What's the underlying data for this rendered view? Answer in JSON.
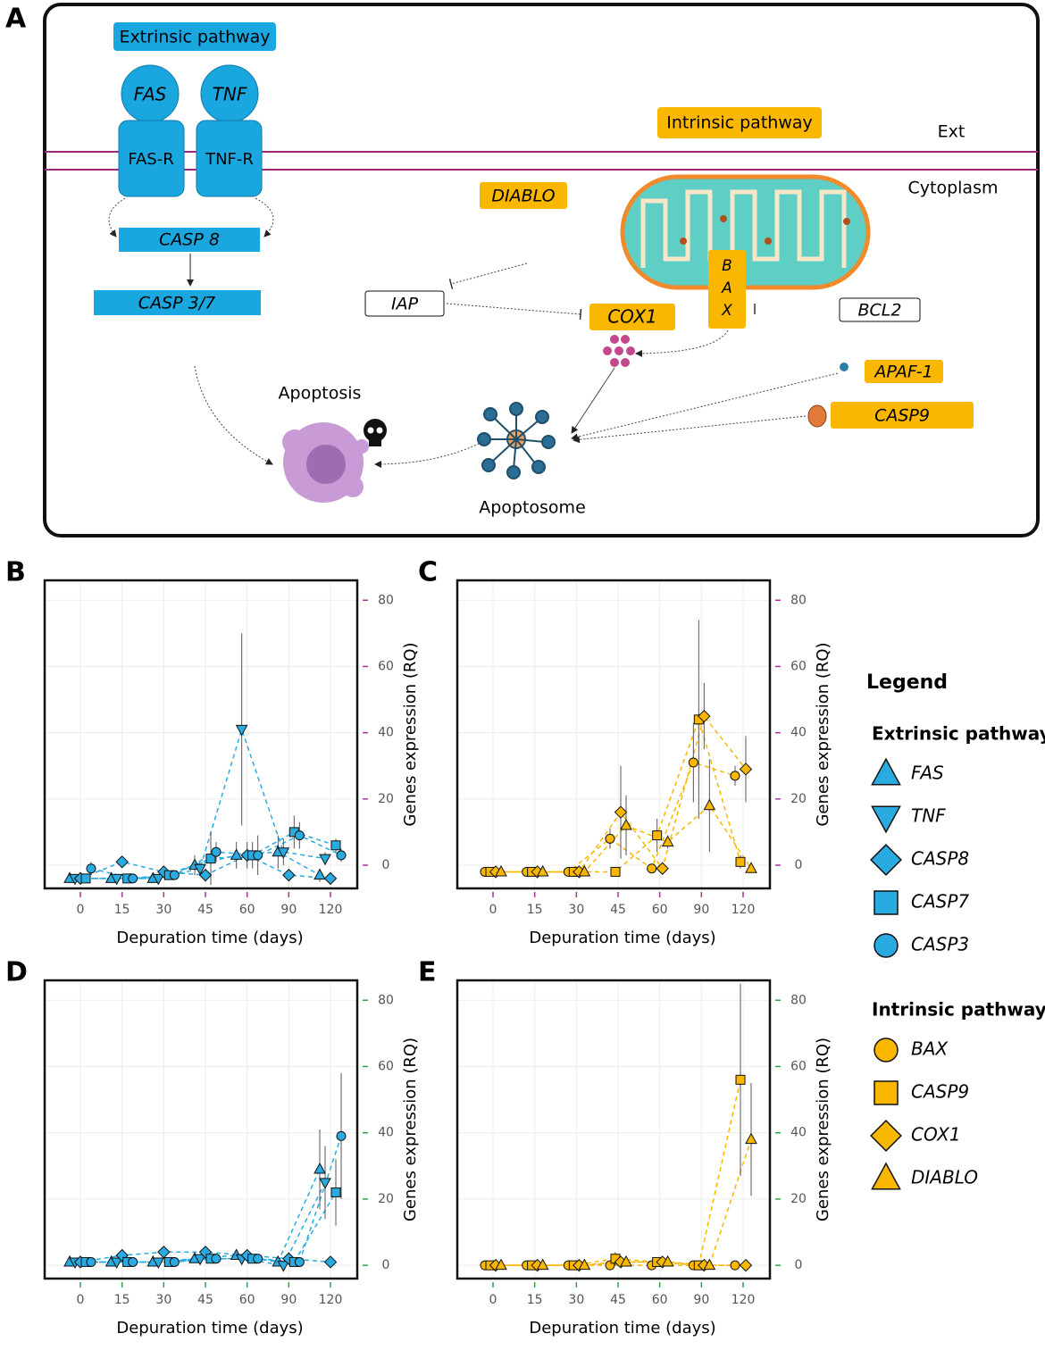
{
  "diagram": {
    "label": "A",
    "extrinsic_pathway": "Extrinsic pathway",
    "intrinsic_pathway": "Intrinsic pathway",
    "ext": "Ext",
    "cytoplasm": "Cytoplasm",
    "ligands": [
      "FAS",
      "TNF"
    ],
    "receptors": [
      "FAS-R",
      "TNF-R"
    ],
    "casp8": "CASP 8",
    "casp37": "CASP 3/7",
    "iap": "IAP",
    "diablo": "DIABLO",
    "bax": [
      "B",
      "A",
      "X"
    ],
    "cox1": "COX1",
    "bcl2": "BCL2",
    "apaf1": "APAF-1",
    "casp9": "CASP9",
    "apoptosis": "Apoptosis",
    "apoptosome": "Apoptosome"
  },
  "chart_data": [
    {
      "type": "line",
      "label": "B",
      "x_label": "Depuration time (days)",
      "y_label": "Genes expression (RQ)",
      "categories": [
        "0",
        "15",
        "30",
        "45",
        "60",
        "90",
        "120"
      ],
      "ylim": [
        -7,
        86
      ],
      "yticks": [
        0,
        20,
        40,
        60,
        80
      ],
      "tick_color": "#b0309a",
      "color": "#29abe2",
      "grid": true,
      "series": [
        {
          "name": "FAS",
          "marker": "triangle-up",
          "values": [
            -4,
            -4,
            -4,
            0,
            3,
            4,
            -3
          ],
          "errors": [
            1,
            1,
            1,
            3,
            4,
            5,
            2
          ]
        },
        {
          "name": "TNF",
          "marker": "triangle-down",
          "values": [
            -4,
            -4,
            -4,
            -1,
            41,
            4,
            2
          ],
          "errors": [
            1,
            1,
            1,
            2,
            29,
            4,
            2
          ]
        },
        {
          "name": "CASP8",
          "marker": "diamond",
          "values": [
            -4,
            1,
            -2,
            -3,
            3,
            -3,
            -4
          ],
          "errors": [
            1,
            1,
            1,
            2,
            4,
            1,
            1
          ]
        },
        {
          "name": "CASP7",
          "marker": "square",
          "values": [
            -4,
            -4,
            -3,
            2,
            3,
            10,
            6
          ],
          "errors": [
            1,
            1,
            1,
            8,
            4,
            5,
            2
          ]
        },
        {
          "name": "CASP3",
          "marker": "circle",
          "values": [
            -1,
            -4,
            -3,
            4,
            3,
            9,
            3
          ],
          "errors": [
            2,
            1,
            1,
            3,
            6,
            4,
            2
          ]
        }
      ]
    },
    {
      "type": "line",
      "label": "C",
      "x_label": "Depuration time (days)",
      "y_label": "Genes expression (RQ)",
      "categories": [
        "0",
        "15",
        "30",
        "45",
        "60",
        "90",
        "120"
      ],
      "ylim": [
        -7,
        86
      ],
      "yticks": [
        0,
        20,
        40,
        60,
        80
      ],
      "tick_color": "#b0309a",
      "color": "#f9b700",
      "grid": true,
      "series": [
        {
          "name": "BAX",
          "marker": "circle",
          "values": [
            -2,
            -2,
            -2,
            8,
            -1,
            31,
            27
          ],
          "errors": [
            1,
            1,
            1,
            3,
            1,
            12,
            3
          ]
        },
        {
          "name": "CASP9",
          "marker": "square",
          "values": [
            -2,
            -2,
            -2,
            -2,
            9,
            44,
            1
          ],
          "errors": [
            1,
            1,
            1,
            1,
            5,
            30,
            2
          ]
        },
        {
          "name": "COX1",
          "marker": "diamond",
          "values": [
            -2,
            -2,
            -2,
            16,
            -1,
            45,
            29
          ],
          "errors": [
            1,
            1,
            1,
            14,
            1,
            10,
            10
          ]
        },
        {
          "name": "DIABLO",
          "marker": "triangle-up",
          "values": [
            -2,
            -2,
            -2,
            12,
            7,
            18,
            -1
          ],
          "errors": [
            1,
            1,
            1,
            9,
            2,
            14,
            1
          ]
        }
      ]
    },
    {
      "type": "line",
      "label": "D",
      "x_label": "Depuration time (days)",
      "y_label": "Genes expression (RQ)",
      "categories": [
        "0",
        "15",
        "30",
        "45",
        "60",
        "90",
        "120"
      ],
      "ylim": [
        -4,
        86
      ],
      "yticks": [
        0,
        20,
        40,
        60,
        80
      ],
      "tick_color": "#2aa34a",
      "color": "#29abe2",
      "grid": true,
      "series": [
        {
          "name": "FAS",
          "marker": "triangle-up",
          "values": [
            1,
            1,
            1,
            2,
            3,
            1,
            29
          ],
          "errors": [
            1,
            1,
            1,
            1,
            1,
            1,
            12
          ]
        },
        {
          "name": "TNF",
          "marker": "triangle-down",
          "values": [
            1,
            1,
            1,
            2,
            2,
            0,
            25
          ],
          "errors": [
            1,
            1,
            1,
            1,
            1,
            1,
            11
          ]
        },
        {
          "name": "CASP8",
          "marker": "diamond",
          "values": [
            1,
            3,
            4,
            4,
            3,
            2,
            1
          ],
          "errors": [
            1,
            1,
            1,
            1,
            1,
            1,
            1
          ]
        },
        {
          "name": "CASP7",
          "marker": "square",
          "values": [
            1,
            1,
            1,
            2,
            2,
            1,
            22
          ],
          "errors": [
            1,
            1,
            1,
            1,
            1,
            1,
            10
          ]
        },
        {
          "name": "CASP3",
          "marker": "circle",
          "values": [
            1,
            1,
            1,
            2,
            2,
            1,
            39
          ],
          "errors": [
            1,
            1,
            1,
            1,
            1,
            1,
            19
          ]
        }
      ]
    },
    {
      "type": "line",
      "label": "E",
      "x_label": "Depuration time (days)",
      "y_label": "Genes expression (RQ)",
      "categories": [
        "0",
        "15",
        "30",
        "45",
        "60",
        "90",
        "120"
      ],
      "ylim": [
        -4,
        86
      ],
      "yticks": [
        0,
        20,
        40,
        60,
        80
      ],
      "tick_color": "#2aa34a",
      "color": "#f9b700",
      "grid": true,
      "series": [
        {
          "name": "BAX",
          "marker": "circle",
          "values": [
            0,
            0,
            0,
            0,
            0,
            0,
            0
          ],
          "errors": [
            1,
            1,
            1,
            1,
            1,
            1,
            1
          ]
        },
        {
          "name": "CASP9",
          "marker": "square",
          "values": [
            0,
            0,
            0,
            2,
            1,
            0,
            56
          ],
          "errors": [
            1,
            1,
            1,
            2,
            1,
            1,
            29
          ]
        },
        {
          "name": "COX1",
          "marker": "diamond",
          "values": [
            0,
            0,
            0,
            1,
            1,
            0,
            0
          ],
          "errors": [
            1,
            1,
            1,
            1,
            1,
            1,
            1
          ]
        },
        {
          "name": "DIABLO",
          "marker": "triangle-up",
          "values": [
            0,
            0,
            0,
            1,
            1,
            0,
            38
          ],
          "errors": [
            1,
            1,
            1,
            1,
            1,
            1,
            17
          ]
        }
      ]
    }
  ],
  "legend": {
    "title": "Legend",
    "group_titles": [
      "Extrinsic pathway",
      "Intrinsic pathway"
    ]
  }
}
